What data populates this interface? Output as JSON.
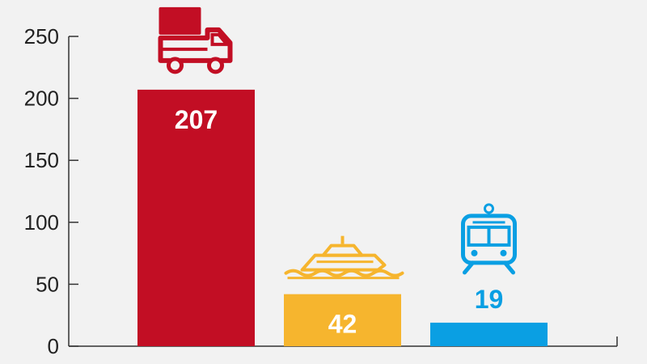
{
  "chart_data": {
    "type": "bar",
    "categories": [
      "truck",
      "ship",
      "train"
    ],
    "values": [
      207,
      42,
      19
    ],
    "value_labels": [
      "207",
      "42",
      "19"
    ],
    "bar_colors": [
      "#c20e24",
      "#f6b52e",
      "#0a9fe3"
    ],
    "label_colors": [
      "#ffffff",
      "#ffffff",
      "#0a9fe3"
    ],
    "icons": [
      "truck-icon",
      "ship-icon",
      "train-icon"
    ],
    "ylim": [
      0,
      250
    ],
    "y_ticks": [
      0,
      50,
      100,
      150,
      200,
      250
    ],
    "y_tick_labels": [
      "0",
      "50",
      "100",
      "150",
      "200",
      "250"
    ],
    "grid": false,
    "title": "",
    "xlabel": "",
    "ylabel": ""
  }
}
